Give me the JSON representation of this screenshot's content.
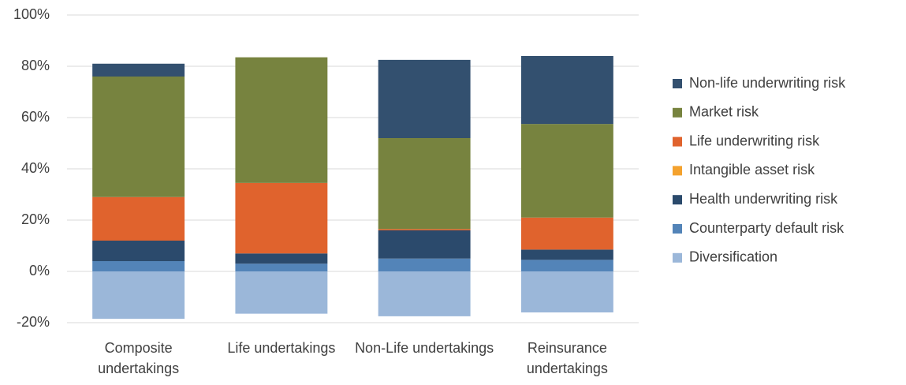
{
  "chart_data": {
    "type": "stacked-bar",
    "categories": [
      "Composite undertakings",
      "Life undertakings",
      "Non-Life undertakings",
      "Reinsurance undertakings"
    ],
    "series": [
      {
        "name": "Diversification",
        "color": "#9bb7d9",
        "values": [
          -18.5,
          -16.5,
          -17.5,
          -16
        ]
      },
      {
        "name": "Counterparty default risk",
        "color": "#5384b8",
        "values": [
          4,
          3,
          5,
          4.5
        ]
      },
      {
        "name": "Health underwriting risk",
        "color": "#2b4a6c",
        "values": [
          8,
          4,
          11,
          4
        ]
      },
      {
        "name": "Intangible asset risk",
        "color": "#f4a22e",
        "values": [
          0,
          0,
          0,
          0
        ]
      },
      {
        "name": "Life underwriting risk",
        "color": "#e0632d",
        "values": [
          17,
          27.5,
          0.5,
          12.5
        ]
      },
      {
        "name": "Market risk",
        "color": "#77833f",
        "values": [
          47,
          49,
          35.5,
          36.5
        ]
      },
      {
        "name": "Non-life underwriting risk",
        "color": "#33506f",
        "values": [
          5,
          0,
          30.5,
          26.5
        ]
      }
    ],
    "ylim": [
      -20,
      100
    ],
    "yticks": [
      {
        "value": -20,
        "label": "-20%"
      },
      {
        "value": 0,
        "label": "0%"
      },
      {
        "value": 20,
        "label": "20%"
      },
      {
        "value": 40,
        "label": "40%"
      },
      {
        "value": 60,
        "label": "60%"
      },
      {
        "value": 80,
        "label": "80%"
      },
      {
        "value": 100,
        "label": "100%"
      }
    ],
    "grid": true,
    "legend": "right"
  }
}
